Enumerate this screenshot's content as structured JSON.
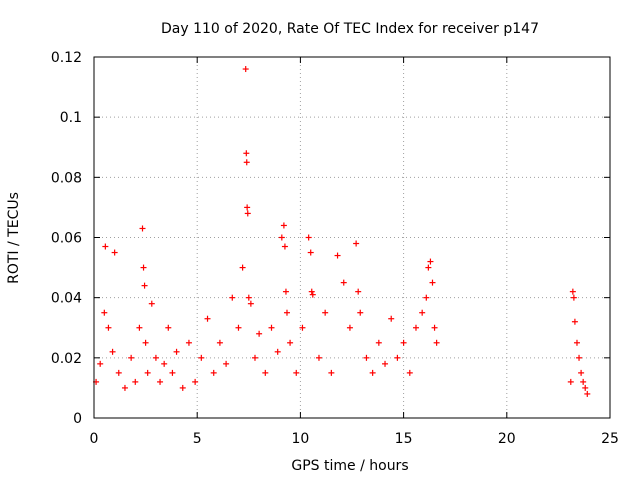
{
  "chart_data": {
    "type": "scatter",
    "title": "Day 110 of 2020, Rate Of TEC Index for receiver p147",
    "xlabel": "GPS time / hours",
    "ylabel": "ROTI / TECUs",
    "xlim": [
      0,
      25
    ],
    "ylim": [
      0,
      0.12
    ],
    "xticks": [
      0,
      5,
      10,
      15,
      20,
      25
    ],
    "xtick_labels": [
      "0",
      "5",
      "10",
      "15",
      "20",
      "25"
    ],
    "yticks": [
      0,
      0.02,
      0.04,
      0.06,
      0.08,
      0.1,
      0.12
    ],
    "ytick_labels": [
      "0",
      "0.02",
      "0.04",
      "0.06",
      "0.08",
      "0.1",
      "0.12"
    ],
    "grid": true,
    "marker": "+",
    "color": "#ff0000",
    "series": [
      {
        "name": "ROTI",
        "x": [
          0.1,
          0.3,
          0.5,
          0.55,
          0.7,
          0.9,
          1.0,
          1.2,
          1.5,
          1.8,
          2.0,
          2.2,
          2.35,
          2.4,
          2.45,
          2.5,
          2.6,
          2.8,
          3.0,
          3.2,
          3.4,
          3.6,
          3.8,
          4.0,
          4.3,
          4.6,
          4.9,
          5.2,
          5.5,
          5.8,
          6.1,
          6.4,
          6.7,
          7.0,
          7.2,
          7.35,
          7.38,
          7.4,
          7.42,
          7.45,
          7.5,
          7.6,
          7.8,
          8.0,
          8.3,
          8.6,
          8.9,
          9.1,
          9.2,
          9.25,
          9.3,
          9.35,
          9.5,
          9.8,
          10.1,
          10.4,
          10.5,
          10.55,
          10.6,
          10.9,
          11.2,
          11.5,
          11.8,
          12.1,
          12.4,
          12.7,
          12.8,
          12.9,
          13.2,
          13.5,
          13.8,
          14.1,
          14.4,
          14.7,
          15.0,
          15.3,
          15.6,
          15.9,
          16.1,
          16.2,
          16.3,
          16.4,
          16.5,
          16.6,
          23.1,
          23.2,
          23.25,
          23.3,
          23.4,
          23.5,
          23.6,
          23.7,
          23.8,
          23.9
        ],
        "y": [
          0.012,
          0.018,
          0.035,
          0.057,
          0.03,
          0.022,
          0.055,
          0.015,
          0.01,
          0.02,
          0.012,
          0.03,
          0.063,
          0.05,
          0.044,
          0.025,
          0.015,
          0.038,
          0.02,
          0.012,
          0.018,
          0.03,
          0.015,
          0.022,
          0.01,
          0.025,
          0.012,
          0.02,
          0.033,
          0.015,
          0.025,
          0.018,
          0.04,
          0.03,
          0.05,
          0.116,
          0.088,
          0.085,
          0.07,
          0.068,
          0.04,
          0.038,
          0.02,
          0.028,
          0.015,
          0.03,
          0.022,
          0.06,
          0.064,
          0.057,
          0.042,
          0.035,
          0.025,
          0.015,
          0.03,
          0.06,
          0.055,
          0.042,
          0.041,
          0.02,
          0.035,
          0.015,
          0.054,
          0.045,
          0.03,
          0.058,
          0.042,
          0.035,
          0.02,
          0.015,
          0.025,
          0.018,
          0.033,
          0.02,
          0.025,
          0.015,
          0.03,
          0.035,
          0.04,
          0.05,
          0.052,
          0.045,
          0.03,
          0.025,
          0.012,
          0.042,
          0.04,
          0.032,
          0.025,
          0.02,
          0.015,
          0.012,
          0.01,
          0.008
        ]
      }
    ]
  }
}
